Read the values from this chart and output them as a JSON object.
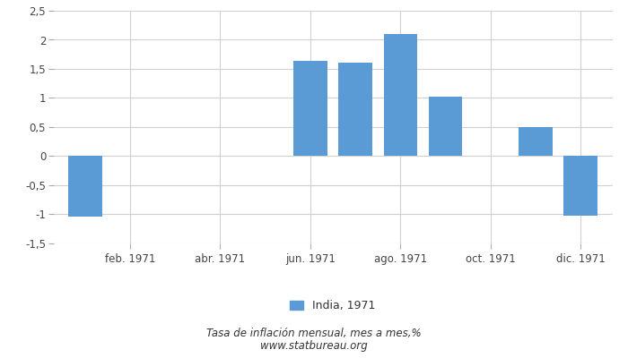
{
  "x_positions": [
    1,
    2,
    3,
    4,
    5,
    6,
    7,
    8,
    9,
    10,
    11,
    12
  ],
  "values": [
    -1.04,
    null,
    null,
    null,
    null,
    1.64,
    1.61,
    2.1,
    1.03,
    null,
    0.5,
    -1.02
  ],
  "bar_color": "#5b9bd5",
  "tick_labels": [
    "feb. 1971",
    "abr. 1971",
    "jun. 1971",
    "ago. 1971",
    "oct. 1971",
    "dic. 1971"
  ],
  "tick_positions": [
    2,
    4,
    6,
    8,
    10,
    12
  ],
  "ylim": [
    -1.5,
    2.5
  ],
  "yticks": [
    -1.5,
    -1.0,
    -0.5,
    0.0,
    0.5,
    1.0,
    1.5,
    2.0,
    2.5
  ],
  "ytick_labels": [
    "-1,5",
    "-1",
    "-0,5",
    "0",
    "0,5",
    "1",
    "1,5",
    "2",
    "2,5"
  ],
  "legend_label": "India, 1971",
  "footnote_line1": "Tasa de inflación mensual, mes a mes,%",
  "footnote_line2": "www.statbureau.org",
  "background_color": "#ffffff",
  "grid_color": "#d0d0d0",
  "bar_width": 0.75
}
